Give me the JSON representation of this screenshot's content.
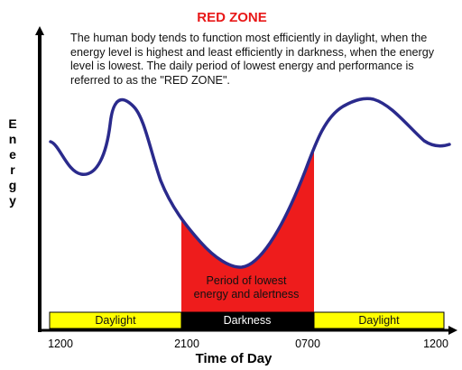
{
  "title": "RED ZONE",
  "description": "The human body tends to function most efficiently in daylight, when the energy level is highest and least efficiently in darkness, when the energy level is lowest.  The daily period of lowest energy and performance is referred to as the \"RED ZONE\".",
  "y_axis_label": [
    "E",
    "n",
    "e",
    "r",
    "g",
    "y"
  ],
  "x_axis_label": "Time of Day",
  "red_zone_label": [
    "Period of lowest",
    "energy and alertness"
  ],
  "bands": [
    {
      "label": "Daylight",
      "color": "#ffff00",
      "text_color": "#111111"
    },
    {
      "label": "Darkness",
      "color": "#000000",
      "text_color": "#ffffff"
    },
    {
      "label": "Daylight",
      "color": "#ffff00",
      "text_color": "#111111"
    }
  ],
  "time_ticks": [
    "1200",
    "2100",
    "0700",
    "1200"
  ],
  "colors": {
    "title": "#e81818",
    "curve": "#2a2a8c",
    "red_zone": "#ee1c1c",
    "axis": "#000000"
  }
}
